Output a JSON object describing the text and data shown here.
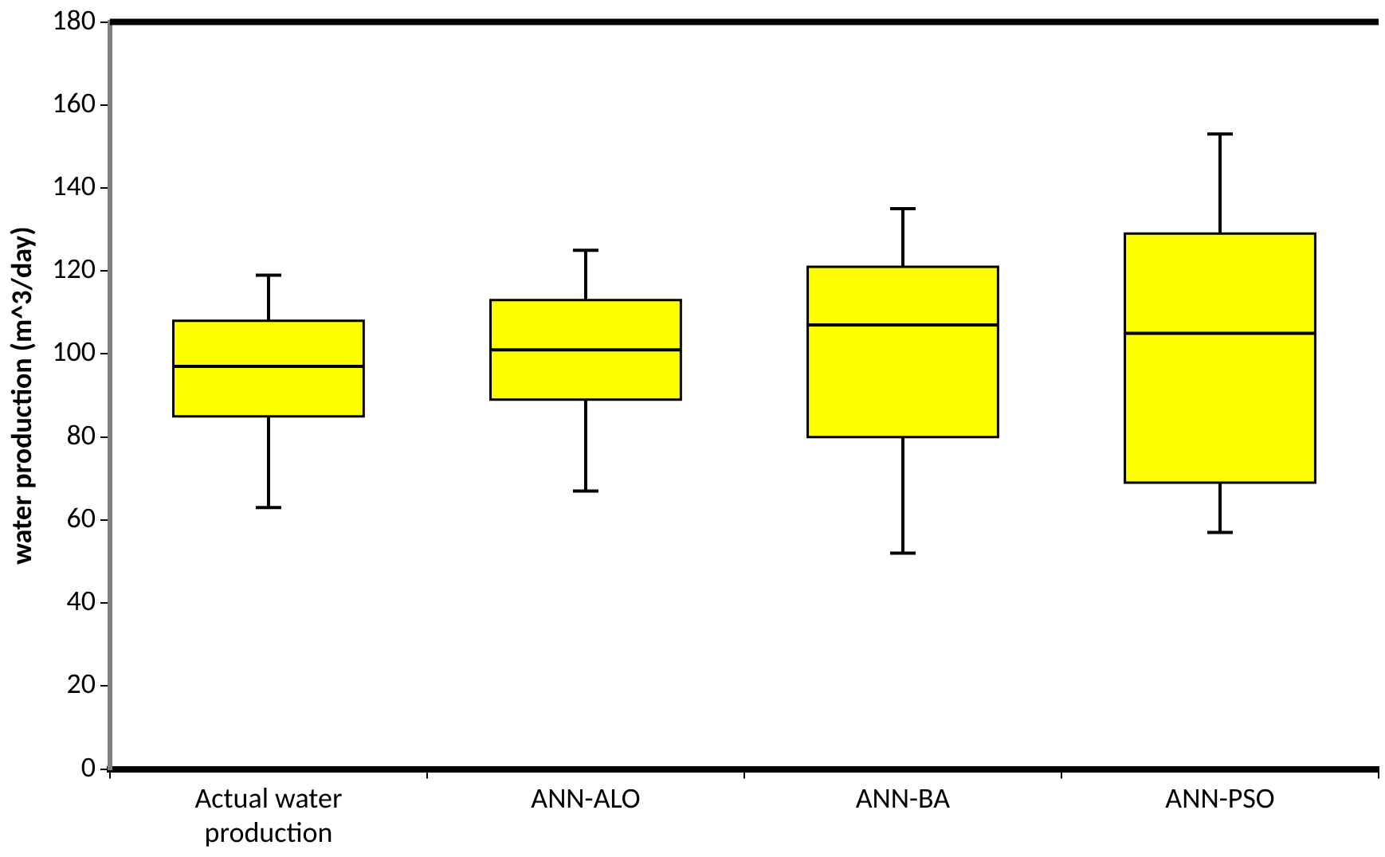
{
  "chart_data": {
    "type": "box",
    "ylabel": "water production (m^3/day)",
    "categories": [
      "Actual water production",
      "ANN-ALO",
      "ANN-BA",
      "ANN-PSO"
    ],
    "color": "#ffff00",
    "boxes": [
      {
        "low": 63,
        "q1": 85,
        "median": 97,
        "q3": 108,
        "high": 119
      },
      {
        "low": 67,
        "q1": 89,
        "median": 101,
        "q3": 113,
        "high": 125
      },
      {
        "low": 52,
        "q1": 80,
        "median": 107,
        "q3": 121,
        "high": 135
      },
      {
        "low": 57,
        "q1": 69,
        "median": 105,
        "q3": 129,
        "high": 153
      }
    ],
    "ylim": [
      0,
      180
    ],
    "yticks": [
      0,
      20,
      40,
      60,
      80,
      100,
      120,
      140,
      160,
      180
    ],
    "grid": false,
    "legend": false
  }
}
